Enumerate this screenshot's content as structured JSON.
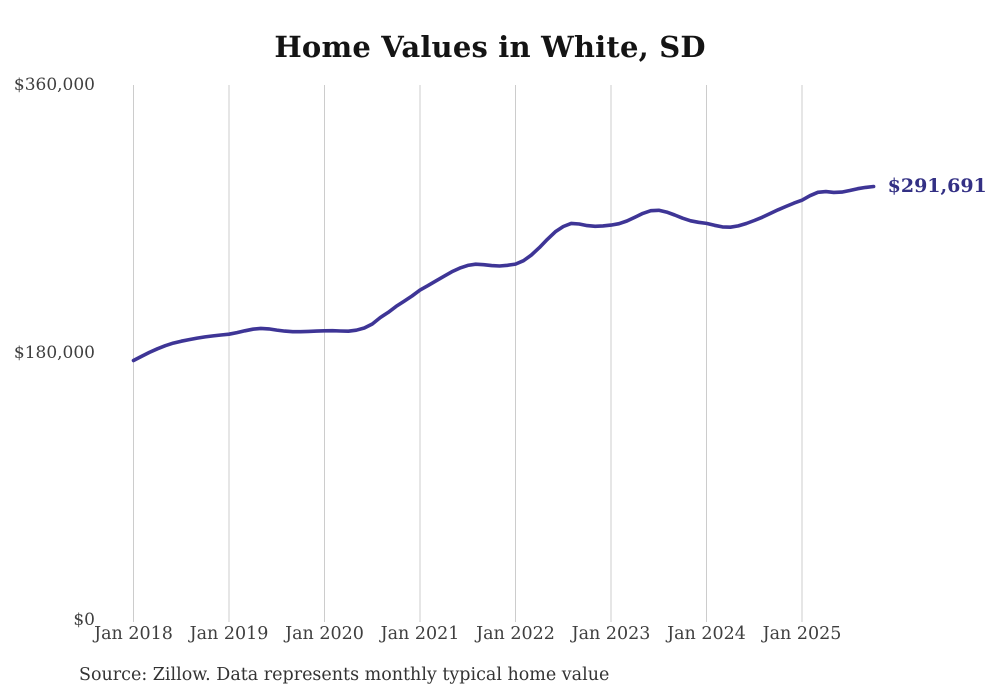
{
  "title": "Home Values in White, SD",
  "source_note": "Source: Zillow. Data represents monthly typical home value",
  "colors": {
    "line": "#3e3596",
    "latest_label": "#333084",
    "grid": "#cccccc",
    "axis_text": "#3f3f3f",
    "title_text": "#141414",
    "source_text": "#333333",
    "background": "#ffffff"
  },
  "chart_data": {
    "type": "line",
    "title": "Home Values in White, SD",
    "xlabel": "",
    "ylabel": "",
    "x_tick_labels": [
      "Jan 2018",
      "Jan 2019",
      "Jan 2020",
      "Jan 2021",
      "Jan 2022",
      "Jan 2023",
      "Jan 2024",
      "Jan 2025"
    ],
    "y_ticks": [
      {
        "label": "$0",
        "value": 0
      },
      {
        "label": "$180,000",
        "value": 180000
      },
      {
        "label": "$360,000",
        "value": 360000
      }
    ],
    "ylim": [
      0,
      360000
    ],
    "grid": "vertical",
    "legend": false,
    "series": [
      {
        "name": "Monthly typical home value",
        "start": "Jan 2018",
        "interval": "monthly",
        "values": [
          174600,
          177400,
          180100,
          182500,
          184600,
          186300,
          187600,
          188700,
          189700,
          190500,
          191200,
          191800,
          192300,
          193400,
          194600,
          195700,
          196200,
          195900,
          195100,
          194400,
          194000,
          194000,
          194200,
          194400,
          194600,
          194700,
          194500,
          194300,
          195000,
          196500,
          199200,
          203500,
          207000,
          211000,
          214500,
          218000,
          222000,
          225000,
          228200,
          231300,
          234300,
          236800,
          238600,
          239400,
          239100,
          238500,
          238200,
          238700,
          239500,
          241800,
          245600,
          250600,
          256100,
          261200,
          264800,
          266900,
          266500,
          265400,
          264900,
          265200,
          265700,
          266700,
          268500,
          271000,
          273600,
          275400,
          275700,
          274500,
          272500,
          270400,
          268600,
          267600,
          266900,
          265600,
          264500,
          264300,
          265200,
          266800,
          268800,
          271000,
          273500,
          276000,
          278300,
          280500,
          282500,
          285500,
          287800,
          288300,
          287700,
          287900,
          289000,
          290200,
          291100,
          291691
        ]
      }
    ],
    "latest": {
      "value": 291691,
      "label": "$291,691"
    }
  }
}
